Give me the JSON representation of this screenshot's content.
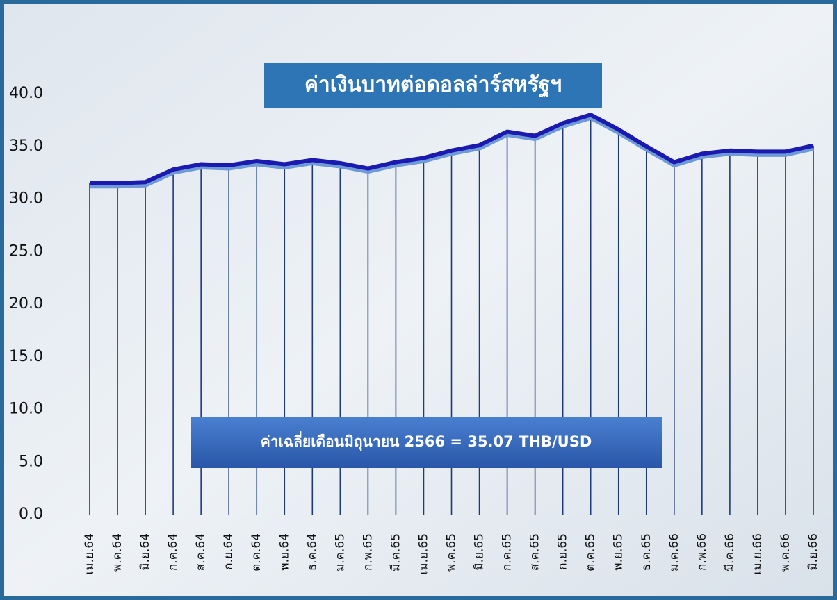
{
  "chart_data": {
    "type": "line",
    "title": "ค่าเงินบาทต่อดอลล่าร์สหรัฐฯ",
    "annotation": "ค่าเฉลี่ยเดือนมิถุนายน 2566 = 35.07 THB/USD",
    "categories": [
      "เม.ย.64",
      "พ.ค.64",
      "มิ.ย.64",
      "ก.ค.64",
      "ส.ค.64",
      "ก.ย.64",
      "ต.ค.64",
      "พ.ย.64",
      "ธ.ค.64",
      "ม.ค.65",
      "ก.พ.65",
      "มี.ค.65",
      "เม.ย.65",
      "พ.ค.65",
      "มิ.ย.65",
      "ก.ค.65",
      "ส.ค.65",
      "ก.ย.65",
      "ต.ค.65",
      "พ.ย.65",
      "ธ.ค.65",
      "ม.ค.66",
      "ก.พ.66",
      "มี.ค.66",
      "เม.ย.66",
      "พ.ค.66",
      "มิ.ย.66"
    ],
    "values": [
      31.5,
      31.5,
      31.6,
      32.8,
      33.3,
      33.2,
      33.6,
      33.3,
      33.7,
      33.4,
      32.9,
      33.5,
      33.9,
      34.6,
      35.1,
      36.4,
      36.0,
      37.2,
      38.0,
      36.6,
      35.0,
      33.5,
      34.3,
      34.6,
      34.5,
      34.5,
      35.07
    ],
    "color": "#1a1ab0",
    "drop_line_color": "#1f3a7a",
    "ylim": [
      0,
      40
    ],
    "yticks": [
      {
        "value": 0,
        "label": "0.0"
      },
      {
        "value": 5,
        "label": "5.0"
      },
      {
        "value": 10,
        "label": "10.0"
      },
      {
        "value": 15,
        "label": "15.0"
      },
      {
        "value": 20,
        "label": "20.0"
      },
      {
        "value": 25,
        "label": "25.0"
      },
      {
        "value": 30,
        "label": "30.0"
      },
      {
        "value": 35,
        "label": "35.0"
      },
      {
        "value": 40,
        "label": "40.0"
      }
    ]
  }
}
